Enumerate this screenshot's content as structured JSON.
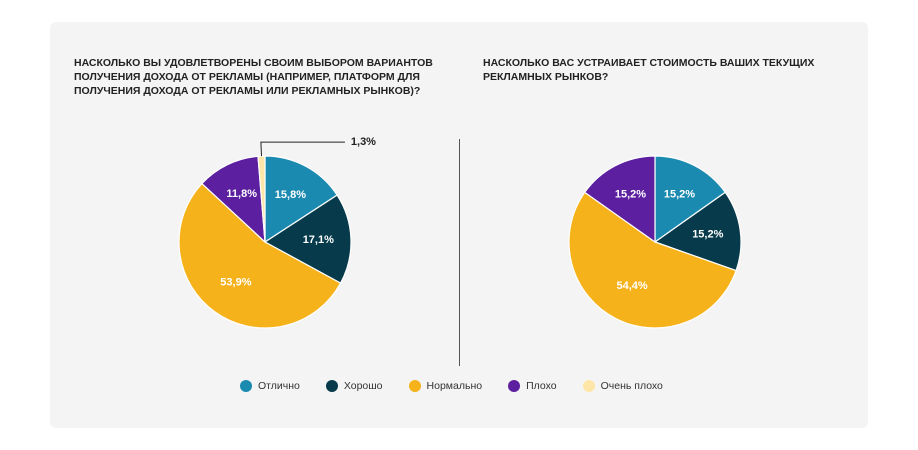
{
  "colors": {
    "excellent": "#1a8ab0",
    "good": "#073b4c",
    "normal": "#f5b21b",
    "bad": "#5b1fa0",
    "very_bad": "#fde6a7"
  },
  "legend": [
    {
      "key": "excellent",
      "label": "Отлично"
    },
    {
      "key": "good",
      "label": "Хорошо"
    },
    {
      "key": "normal",
      "label": "Нормально"
    },
    {
      "key": "bad",
      "label": "Плохо"
    },
    {
      "key": "very_bad",
      "label": "Очень плохо"
    }
  ],
  "chart_data": [
    {
      "type": "pie",
      "title": "НАСКОЛЬКО ВЫ УДОВЛЕТВОРЕНЫ СВОИМ ВЫБОРОМ ВАРИАНТОВ ПОЛУЧЕНИЯ ДОХОДА ОТ РЕКЛАМЫ (например, ПЛАТФОРМ ДЛЯ ПОЛУЧЕНИЯ ДОХОДА ОТ РЕКЛАМЫ ИЛИ РЕКЛАМНЫХ РЫНКОВ)?",
      "slices": [
        {
          "key": "excellent",
          "category": "Отлично",
          "value": 15.8,
          "label": "15,8%"
        },
        {
          "key": "good",
          "category": "Хорошо",
          "value": 17.1,
          "label": "17,1%"
        },
        {
          "key": "normal",
          "category": "Нормально",
          "value": 53.9,
          "label": "53,9%"
        },
        {
          "key": "bad",
          "category": "Плохо",
          "value": 11.8,
          "label": "11,8%"
        },
        {
          "key": "very_bad",
          "category": "Очень плохо",
          "value": 1.3,
          "label": "1,3%",
          "outside": true
        }
      ]
    },
    {
      "type": "pie",
      "title": "НАСКОЛЬКО ВАС УСТРАИВАЕТ СТОИМОСТЬ ВАШИХ ТЕКУЩИХ РЕКЛАМНЫХ РЫНКОВ?",
      "slices": [
        {
          "key": "excellent",
          "category": "Отлично",
          "value": 15.2,
          "label": "15,2%"
        },
        {
          "key": "good",
          "category": "Хорошо",
          "value": 15.2,
          "label": "15,2%"
        },
        {
          "key": "normal",
          "category": "Нормально",
          "value": 54.4,
          "label": "54,4%"
        },
        {
          "key": "bad",
          "category": "Плохо",
          "value": 15.2,
          "label": "15,2%"
        }
      ]
    }
  ]
}
